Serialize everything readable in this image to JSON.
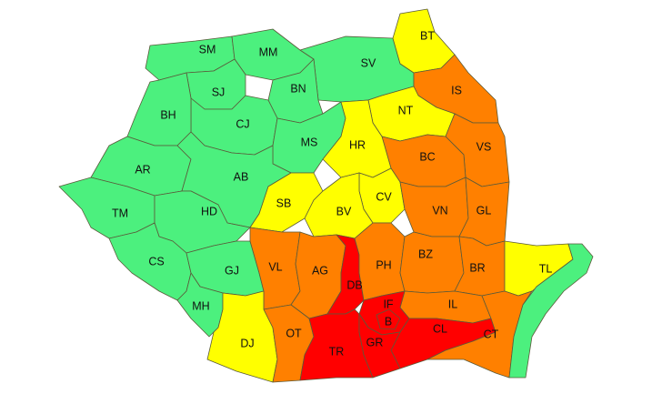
{
  "levels": {
    "green": "#4cf07e",
    "yellow": "#ffff00",
    "orange": "#ff8000",
    "red": "#ff0000"
  },
  "counties": [
    {
      "code": "SM",
      "level": "green"
    },
    {
      "code": "MM",
      "level": "green"
    },
    {
      "code": "SV",
      "level": "green"
    },
    {
      "code": "BT",
      "level": "yellow"
    },
    {
      "code": "IS",
      "level": "orange"
    },
    {
      "code": "NT",
      "level": "yellow"
    },
    {
      "code": "VS",
      "level": "orange"
    },
    {
      "code": "BC",
      "level": "orange"
    },
    {
      "code": "SJ",
      "level": "green"
    },
    {
      "code": "BN",
      "level": "green"
    },
    {
      "code": "CJ",
      "level": "green"
    },
    {
      "code": "BH",
      "level": "green"
    },
    {
      "code": "MS",
      "level": "green"
    },
    {
      "code": "HR",
      "level": "yellow"
    },
    {
      "code": "AR",
      "level": "green"
    },
    {
      "code": "AB",
      "level": "green"
    },
    {
      "code": "TM",
      "level": "green"
    },
    {
      "code": "HD",
      "level": "green"
    },
    {
      "code": "SB",
      "level": "yellow"
    },
    {
      "code": "CV",
      "level": "yellow"
    },
    {
      "code": "BV",
      "level": "yellow"
    },
    {
      "code": "VN",
      "level": "orange"
    },
    {
      "code": "GL",
      "level": "orange"
    },
    {
      "code": "CS",
      "level": "green"
    },
    {
      "code": "GJ",
      "level": "green"
    },
    {
      "code": "MH",
      "level": "green"
    },
    {
      "code": "VL",
      "level": "orange"
    },
    {
      "code": "AG",
      "level": "orange"
    },
    {
      "code": "DJ",
      "level": "yellow"
    },
    {
      "code": "OT",
      "level": "orange"
    },
    {
      "code": "DB",
      "level": "red"
    },
    {
      "code": "PH",
      "level": "orange"
    },
    {
      "code": "BZ",
      "level": "orange"
    },
    {
      "code": "BR",
      "level": "orange"
    },
    {
      "code": "TL",
      "level": "yellow"
    },
    {
      "code": "IL",
      "level": "orange"
    },
    {
      "code": "IF",
      "level": "red"
    },
    {
      "code": "CL",
      "level": "red"
    },
    {
      "code": "CT",
      "level": "orange"
    },
    {
      "code": "TR",
      "level": "red"
    },
    {
      "code": "GR",
      "level": "red"
    },
    {
      "code": "B",
      "level": "red"
    }
  ],
  "marine_zone": {
    "level": "green"
  }
}
